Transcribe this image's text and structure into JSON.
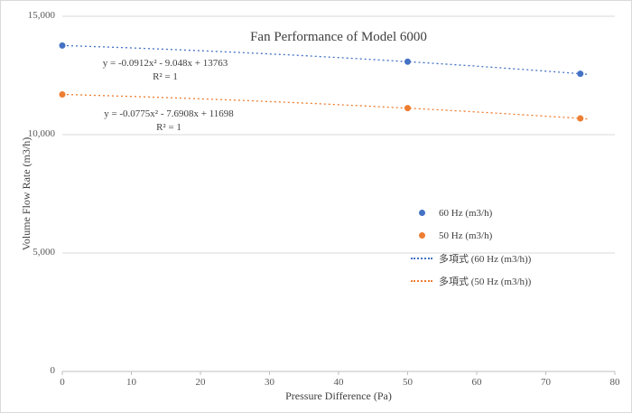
{
  "chart_data": {
    "type": "scatter",
    "title": "Fan Performance of Model 6000",
    "xlabel": "Pressure Difference (Pa)",
    "ylabel": "Volume Flow Rate (m3/h)",
    "xlim": [
      0,
      80
    ],
    "ylim": [
      0,
      15000
    ],
    "grid": "horizontal",
    "legend_position": "inside-right",
    "x_ticks": [
      {
        "value": 0,
        "label": "0"
      },
      {
        "value": 10,
        "label": "10"
      },
      {
        "value": 20,
        "label": "20"
      },
      {
        "value": 30,
        "label": "30"
      },
      {
        "value": 40,
        "label": "40"
      },
      {
        "value": 50,
        "label": "50"
      },
      {
        "value": 60,
        "label": "60"
      },
      {
        "value": 70,
        "label": "70"
      },
      {
        "value": 80,
        "label": "80"
      }
    ],
    "y_ticks": [
      {
        "value": 0,
        "label": "0"
      },
      {
        "value": 5000,
        "label": "5,000"
      },
      {
        "value": 10000,
        "label": "10,000"
      },
      {
        "value": 15000,
        "label": "15,000"
      }
    ],
    "series": [
      {
        "name": "60 Hz (m3/h)",
        "color": "#4472c4",
        "x": [
          0,
          50,
          75
        ],
        "y": [
          13763,
          13083,
          12571
        ]
      },
      {
        "name": "50 Hz (m3/h)",
        "color": "#ed7d31",
        "x": [
          0,
          50,
          75
        ],
        "y": [
          11698,
          11120,
          10685
        ]
      }
    ],
    "trendlines": [
      {
        "name": "多項式 (60 Hz (m3/h))",
        "color": "#4472c4",
        "coeffs": [
          -0.0912,
          -9.048,
          13763
        ],
        "x_range": [
          0,
          76
        ],
        "equation": "y = -0.0912x² - 9.048x + 13763",
        "r2": "R² = 1"
      },
      {
        "name": "多項式 (50 Hz (m3/h))",
        "color": "#ed7d31",
        "coeffs": [
          -0.0775,
          -7.6908,
          11698
        ],
        "x_range": [
          0,
          76
        ],
        "equation": "y = -0.0775x² - 7.6908x + 11698",
        "r2": "R² = 1"
      }
    ],
    "legend": [
      {
        "label": "60 Hz (m3/h)",
        "color": "#4472c4",
        "marker": "dot"
      },
      {
        "label": "50 Hz (m3/h)",
        "color": "#ed7d31",
        "marker": "dot"
      },
      {
        "label": "多項式 (60 Hz (m3/h))",
        "color": "#4472c4",
        "marker": "dotted-line"
      },
      {
        "label": "多項式 (50 Hz (m3/h))",
        "color": "#ed7d31",
        "marker": "dotted-line"
      }
    ],
    "colors": {
      "gridline": "#d9d9d9",
      "axis_line": "#bfbfbf",
      "tick_text": "#595959",
      "title_text": "#404040"
    }
  }
}
